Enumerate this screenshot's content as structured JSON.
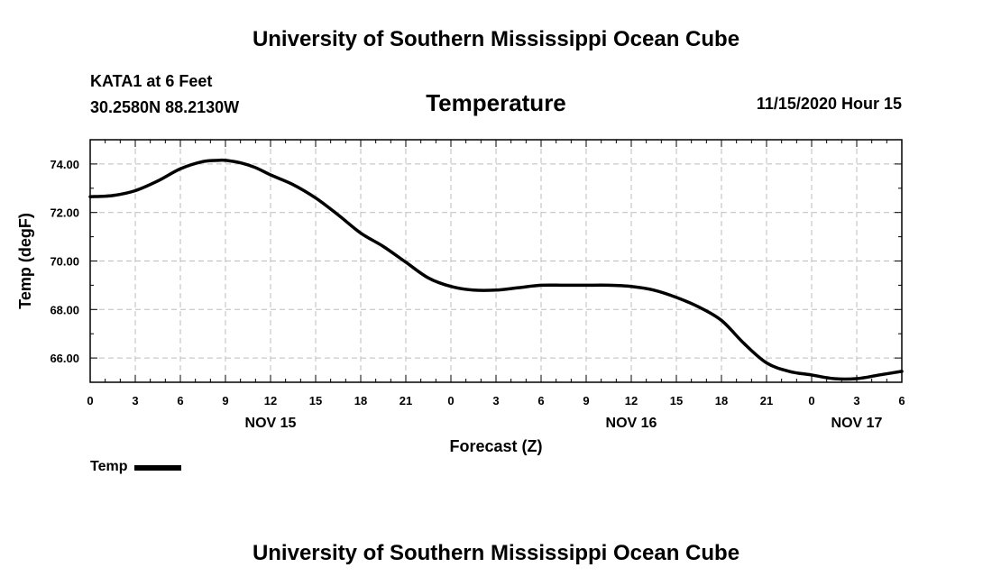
{
  "header": {
    "title": "University of Southern Mississippi Ocean Cube",
    "station": "KATA1 at 6 Feet",
    "coords": "30.2580N 88.2130W",
    "plot_title": "Temperature",
    "datetime": "11/15/2020 Hour 15"
  },
  "footer": {
    "title": "University of Southern Mississippi Ocean Cube"
  },
  "legend": {
    "label": "Temp",
    "color": "#000000"
  },
  "chart_data": {
    "type": "line",
    "title": "Temperature",
    "xlabel": "Forecast (Z)",
    "ylabel": "Temp (degF)",
    "xlim": [
      0,
      54
    ],
    "ylim": [
      65,
      75
    ],
    "grid": true,
    "x_tick_values": [
      0,
      3,
      6,
      9,
      12,
      15,
      18,
      21,
      24,
      27,
      30,
      33,
      36,
      39,
      42,
      45,
      48,
      51,
      54
    ],
    "x_tick_labels": [
      "0",
      "3",
      "6",
      "9",
      "12",
      "15",
      "18",
      "21",
      "0",
      "3",
      "6",
      "9",
      "12",
      "15",
      "18",
      "21",
      "0",
      "3",
      "6"
    ],
    "date_labels": [
      {
        "x": 12,
        "label": "NOV 15"
      },
      {
        "x": 36,
        "label": "NOV 16"
      },
      {
        "x": 51,
        "label": "NOV 17"
      }
    ],
    "y_tick_values": [
      66,
      68,
      70,
      72,
      74
    ],
    "y_tick_labels": [
      "66.00",
      "68.00",
      "70.00",
      "72.00",
      "74.00"
    ],
    "series": [
      {
        "name": "Temp",
        "color": "#000000",
        "x": [
          0,
          1.5,
          3,
          4.5,
          6,
          7.5,
          8.5,
          9,
          10,
          11,
          12,
          13.5,
          15,
          16.5,
          18,
          19.5,
          21,
          22.5,
          24,
          25.5,
          27,
          28.5,
          30,
          31.5,
          33,
          34.5,
          36,
          37.5,
          39,
          40.5,
          42,
          43.5,
          45,
          46.5,
          48,
          49.5,
          51,
          52.5,
          54
        ],
        "values": [
          72.65,
          72.7,
          72.9,
          73.3,
          73.8,
          74.1,
          74.15,
          74.15,
          74.05,
          73.85,
          73.55,
          73.15,
          72.6,
          71.9,
          71.15,
          70.6,
          69.95,
          69.3,
          68.95,
          68.8,
          68.8,
          68.9,
          69.0,
          69.0,
          69.0,
          69.0,
          68.95,
          68.8,
          68.5,
          68.1,
          67.55,
          66.6,
          65.8,
          65.45,
          65.3,
          65.15,
          65.15,
          65.3,
          65.45
        ]
      }
    ]
  }
}
